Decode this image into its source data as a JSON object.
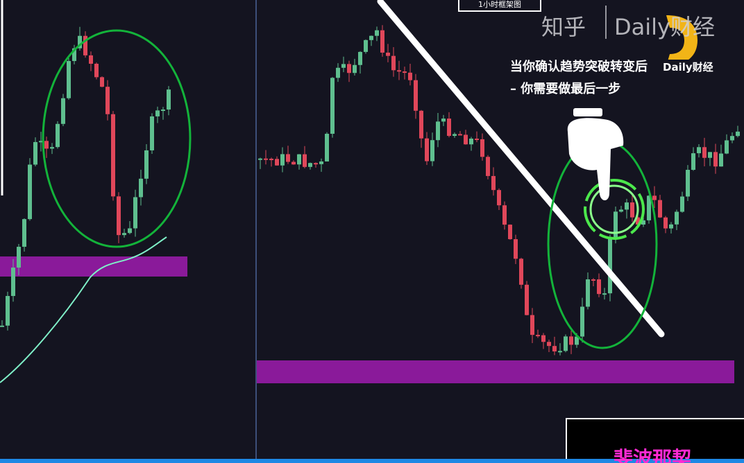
{
  "header": {
    "title": "1小时框架图"
  },
  "watermark": {
    "site": "知乎",
    "channel": "Daily财经"
  },
  "caption": {
    "line1": "当你确认趋势突破转变后",
    "line2": "– 你需要做最后一步",
    "badge": "Daily财经"
  },
  "footer": {
    "label": "斐波那契"
  }
}
